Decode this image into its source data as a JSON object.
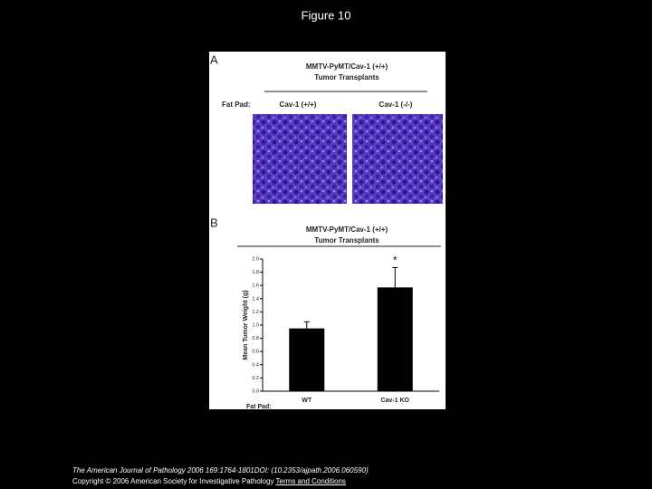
{
  "slide": {
    "title": "Figure 10",
    "panel_a": {
      "label": "A",
      "title": "MMTV-PyMT/Cav-1 (+/+)",
      "subtitle": "Tumor Transplants",
      "row_label": "Fat Pad:",
      "columns": [
        "Cav-1 (+/+)",
        "Cav-1 (-/-)"
      ]
    },
    "panel_b": {
      "label": "B",
      "row_label": "Fat Pad:"
    },
    "footer": {
      "citation": "The American Journal of Pathology 2006 169:1764-1801DOI: (10.2353/ajpath.2006.060590)",
      "copyright": "Copyright © 2006 American Society for Investigative Pathology",
      "link": "Terms and Conditions"
    }
  },
  "chart_data": {
    "type": "bar",
    "title": "MMTV-PyMT/Cav-1 (+/+)",
    "subtitle": "Tumor Transplants",
    "y_label": "Mean Tumor Weight (g)",
    "categories": [
      "WT",
      "Cav-1 KO"
    ],
    "values": [
      0.95,
      1.57
    ],
    "errors": [
      0.1,
      0.3
    ],
    "color": "#000000",
    "annotations": [
      {
        "category": 1,
        "text": "*"
      }
    ],
    "ylim": [
      0,
      2.0
    ],
    "yticks": [
      {
        "value": 0,
        "label": "0.0"
      },
      0.2,
      0.4,
      0.6,
      0.8,
      {
        "value": 1.0,
        "label": "1.0"
      },
      1.2,
      1.4,
      1.6,
      1.8,
      {
        "value": 2.0,
        "label": "2.0"
      }
    ]
  }
}
